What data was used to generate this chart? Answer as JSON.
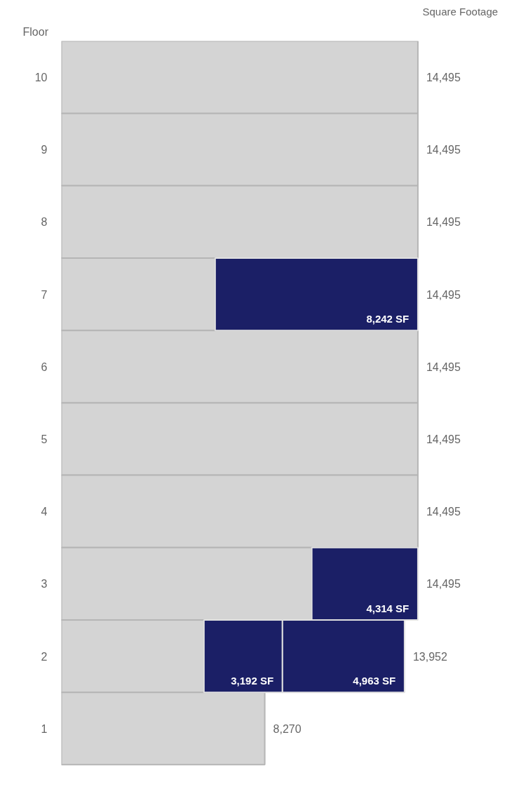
{
  "chart_data": {
    "type": "bar",
    "orientation": "horizontal",
    "stacked": true,
    "ylabel": "Floor",
    "y2label": "Square Footage",
    "tick_labels": "y",
    "categories": [
      "10",
      "9",
      "8",
      "7",
      "6",
      "5",
      "4",
      "3",
      "2",
      "1"
    ],
    "series": [
      {
        "color": "#d4d4d4",
        "values": [
          14495,
          14495,
          14495,
          6253,
          14495,
          14495,
          14495,
          10181,
          5797,
          8270
        ]
      },
      {
        "color": "#1b1f66",
        "values": [
          null,
          null,
          null,
          8242,
          null,
          null,
          null,
          4314,
          3192,
          null
        ],
        "value_labels": [
          null,
          null,
          null,
          "8,242 SF",
          null,
          null,
          null,
          "4,314 SF",
          "3,192 SF",
          null
        ]
      },
      {
        "color": "#1b1f66",
        "values": [
          null,
          null,
          null,
          null,
          null,
          null,
          null,
          null,
          4963,
          null
        ],
        "value_labels": [
          null,
          null,
          null,
          null,
          null,
          null,
          null,
          null,
          "4,963 SF",
          null
        ]
      }
    ],
    "totals": [
      "14,495",
      "14,495",
      "14,495",
      "14,495",
      "14,495",
      "14,495",
      "14,495",
      "14,495",
      "13,952",
      "8,270"
    ]
  }
}
